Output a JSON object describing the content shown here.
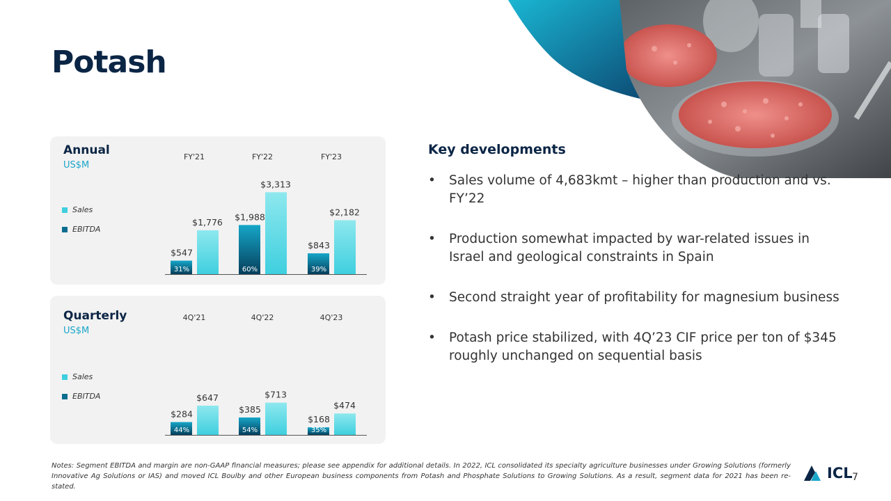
{
  "page": {
    "title": "Potash",
    "page_number": "7"
  },
  "colors": {
    "sales": "#3fcfdf",
    "ebitda": "#0a6d8f",
    "title": "#0b2545",
    "accent": "#1aa6c9"
  },
  "annual": {
    "title": "Annual",
    "unit": "US$M",
    "legend": {
      "sales": "Sales",
      "ebitda": "EBITDA"
    }
  },
  "quarterly": {
    "title": "Quarterly",
    "unit": "US$M",
    "legend": {
      "sales": "Sales",
      "ebitda": "EBITDA"
    }
  },
  "chart_data": [
    {
      "type": "bar",
      "categories": [
        "FY'21",
        "FY'22",
        "FY'23"
      ],
      "series": [
        {
          "name": "EBITDA",
          "values": [
            547,
            1988,
            843
          ],
          "labels": [
            "$547",
            "$1,988",
            "$843"
          ],
          "margins": [
            "31%",
            "60%",
            "39%"
          ]
        },
        {
          "name": "Sales",
          "values": [
            1776,
            3313,
            2182
          ],
          "labels": [
            "$1,776",
            "$3,313",
            "$2,182"
          ]
        }
      ],
      "title": "Annual",
      "ylabel": "US$M",
      "ylim": [
        0,
        3800
      ],
      "grid": false,
      "legend": "left"
    },
    {
      "type": "bar",
      "categories": [
        "4Q'21",
        "4Q'22",
        "4Q'23"
      ],
      "series": [
        {
          "name": "EBITDA",
          "values": [
            284,
            385,
            168
          ],
          "labels": [
            "$284",
            "$385",
            "$168"
          ],
          "margins": [
            "44%",
            "54%",
            "35%"
          ]
        },
        {
          "name": "Sales",
          "values": [
            647,
            713,
            474
          ],
          "labels": [
            "$647",
            "$713",
            "$474"
          ]
        }
      ],
      "title": "Quarterly",
      "ylabel": "US$M",
      "ylim": [
        0,
        1000
      ],
      "grid": false,
      "legend": "left"
    }
  ],
  "key_developments": {
    "title": "Key developments",
    "bullet_symbol": "•",
    "items": [
      "Sales volume of 4,683kmt – higher than production and vs. FY’22",
      "Production somewhat impacted by war-related issues in Israel and geological constraints in Spain",
      "Second straight year of profitability for magnesium business",
      "Potash price stabilized, with 4Q’23 CIF price per ton of $345 roughly unchanged on sequential basis"
    ]
  },
  "notes": "Notes: Segment EBITDA and margin are non-GAAP financial measures; please see appendix for additional details. In 2022, ICL consolidated its specialty agriculture businesses under Growing Solutions (formerly Innovative Ag Solutions or IAS) and moved ICL Boulby and other European business components from Potash and Phosphate Solutions to Growing Solutions. As a result, segment data for 2021 has been re-stated.",
  "logo": {
    "text": "ICL"
  }
}
